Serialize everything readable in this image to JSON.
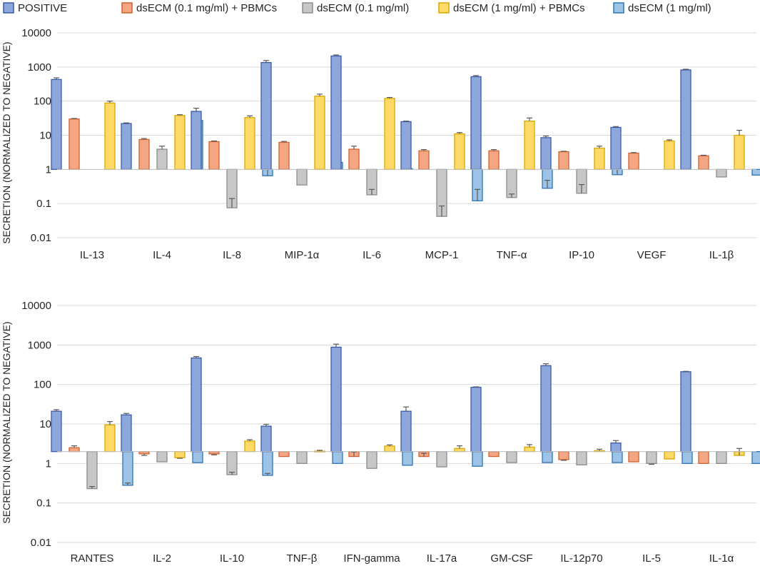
{
  "legend": [
    {
      "name": "POSITIVE",
      "fill": "#8EA7DB",
      "stroke": "#3A5BAA"
    },
    {
      "name": "dsECM (0.1 mg/ml) + PBMCs",
      "fill": "#F4A582",
      "stroke": "#D0622F"
    },
    {
      "name": "dsECM (0.1 mg/ml)",
      "fill": "#C7C7C7",
      "stroke": "#8C8C8C"
    },
    {
      "name": "dsECM (1 mg/ml) + PBMCs",
      "fill": "#FFD966",
      "stroke": "#D9A800"
    },
    {
      "name": "dsECM (1 mg/ml)",
      "fill": "#9DC3E6",
      "stroke": "#2E75B6"
    }
  ],
  "chart_data": [
    {
      "type": "bar",
      "title": "",
      "ylabel": "SECRETION (NORMALIZED TO NEGATIVE)",
      "yscale": "log",
      "ylim": [
        0.01,
        10000
      ],
      "ticks": [
        "0.01",
        "0.1",
        "1",
        "10",
        "100",
        "1000",
        "10000"
      ],
      "baseline": 1,
      "categories": [
        "IL-13",
        "IL-4",
        "IL-8",
        "MIP-1α",
        "IL-6",
        "MCP-1",
        "TNF-α",
        "IP-10",
        "VEGF",
        "IL-1β"
      ],
      "series": [
        {
          "name": "POSITIVE",
          "values": [
            430,
            22,
            50,
            1350,
            2100,
            25,
            520,
            8.5,
            17,
            820
          ],
          "errors": [
            480,
            23,
            62,
            1550,
            2250,
            26,
            560,
            9.5,
            18,
            860
          ]
        },
        {
          "name": "dsECM (0.1 mg/ml) + PBMCs",
          "values": [
            30,
            7.5,
            6.5,
            6.2,
            3.9,
            3.5,
            3.5,
            3.3,
            3.0,
            2.5
          ],
          "errors": [
            31,
            8.0,
            6.8,
            6.6,
            4.8,
            3.8,
            3.8,
            3.4,
            3.1,
            2.6
          ]
        },
        {
          "name": "dsECM (0.1 mg/ml)",
          "values": [
            null,
            3.9,
            0.075,
            0.35,
            0.18,
            0.042,
            0.15,
            0.2,
            null,
            0.6
          ],
          "errors": [
            null,
            4.8,
            0.14,
            0.35,
            0.26,
            0.085,
            0.19,
            0.36,
            null,
            0.6
          ]
        },
        {
          "name": "dsECM (1 mg/ml) + PBMCs",
          "values": [
            88,
            38,
            33,
            140,
            120,
            11,
            26,
            4.2,
            6.8,
            10
          ],
          "errors": [
            100,
            40,
            37,
            160,
            128,
            12,
            32,
            4.8,
            7.3,
            14
          ]
        },
        {
          "name": "dsECM (1 mg/ml)",
          "values": [
            null,
            27,
            0.65,
            1.6,
            1.05,
            0.12,
            0.28,
            0.7,
            null,
            0.68
          ],
          "errors": [
            null,
            28,
            1.35,
            3.3,
            2.1,
            0.26,
            0.48,
            1.25,
            null,
            0.68
          ]
        }
      ]
    },
    {
      "type": "bar",
      "title": "",
      "ylabel": "SECRETION (NORMALIZED TO NEGATIVE)",
      "yscale": "log",
      "ylim": [
        0.01,
        10000
      ],
      "ticks": [
        "0.01",
        "0.1",
        "1",
        "10",
        "100",
        "1000",
        "10000"
      ],
      "baseline": 2,
      "categories": [
        "RANTES",
        "IL-2",
        "IL-10",
        "TNF-β",
        "IFN-gamma",
        "IL-17a",
        "GM-CSF",
        "IL-12p70",
        "IL-5",
        "IL-1α"
      ],
      "series": [
        {
          "name": "POSITIVE",
          "values": [
            21,
            17,
            470,
            8.8,
            880,
            21,
            85,
            300,
            3.3,
            210
          ],
          "errors": [
            23,
            18.5,
            510,
            9.8,
            1050,
            27,
            87,
            335,
            3.8,
            215
          ]
        },
        {
          "name": "dsECM (0.1 mg/ml) + PBMCs",
          "values": [
            2.5,
            1.75,
            1.75,
            1.5,
            1.5,
            1.5,
            1.5,
            1.25,
            1.1,
            1.0
          ],
          "errors": [
            2.8,
            1.6,
            1.65,
            1.5,
            1.95,
            1.8,
            1.5,
            1.2,
            1.1,
            1.0
          ]
        },
        {
          "name": "dsECM (0.1 mg/ml)",
          "values": [
            0.23,
            1.1,
            0.52,
            1.0,
            0.75,
            0.82,
            1.05,
            0.92,
            1.0,
            1.0
          ],
          "errors": [
            0.26,
            1.1,
            0.6,
            1.0,
            0.75,
            0.82,
            1.05,
            0.92,
            0.95,
            1.0
          ]
        },
        {
          "name": "dsECM (1 mg/ml) + PBMCs",
          "values": [
            9.5,
            1.4,
            3.7,
            2.05,
            2.75,
            2.4,
            2.6,
            2.1,
            1.3,
            1.6
          ],
          "errors": [
            11.5,
            1.35,
            4.0,
            2.15,
            2.95,
            2.8,
            3.0,
            2.3,
            1.3,
            2.4
          ]
        },
        {
          "name": "dsECM (1 mg/ml)",
          "values": [
            0.28,
            1.05,
            0.5,
            1.0,
            0.9,
            0.85,
            1.05,
            1.05,
            1.0,
            1.0
          ],
          "errors": [
            0.32,
            1.05,
            0.56,
            1.0,
            0.9,
            0.85,
            1.05,
            1.05,
            1.0,
            1.0
          ]
        }
      ]
    }
  ]
}
